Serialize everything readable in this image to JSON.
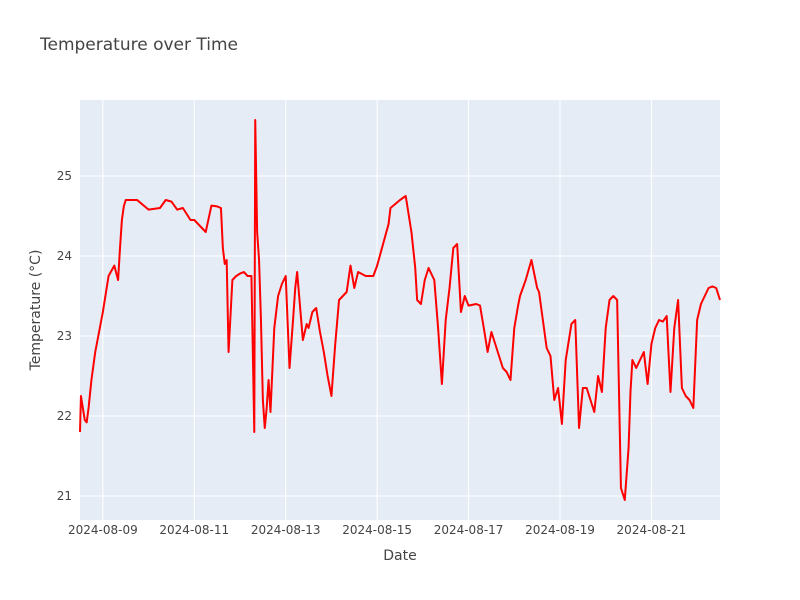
{
  "chart_data": {
    "type": "line",
    "title": "Temperature over Time",
    "xlabel": "Date",
    "ylabel": "Temperature (°C)",
    "xlim": [
      "2024-08-08T12:00",
      "2024-08-22T12:00"
    ],
    "ylim": [
      20.7,
      25.95
    ],
    "x_ticks": [
      "2024-08-09",
      "2024-08-11",
      "2024-08-13",
      "2024-08-15",
      "2024-08-17",
      "2024-08-19",
      "2024-08-21"
    ],
    "y_ticks": [
      21,
      22,
      23,
      24,
      25
    ],
    "grid": true,
    "legend": "none",
    "colors": {
      "line": "#ff0000",
      "plot_bg": "#e5ecf6",
      "grid": "#ffffff"
    },
    "series": [
      {
        "x": [
          "2024-08-08T12:00",
          "2024-08-08T12:30",
          "2024-08-08T13:30",
          "2024-08-08T14:30",
          "2024-08-08T15:30",
          "2024-08-08T16:30",
          "2024-08-08T18:00",
          "2024-08-08T20:00",
          "2024-08-08T22:00",
          "2024-08-09T00:00",
          "2024-08-09T03:00",
          "2024-08-09T06:00",
          "2024-08-09T08:00",
          "2024-08-09T09:00",
          "2024-08-09T10:00",
          "2024-08-09T11:00",
          "2024-08-09T12:00",
          "2024-08-09T13:00",
          "2024-08-09T16:00",
          "2024-08-09T18:00",
          "2024-08-10T00:00",
          "2024-08-10T06:00",
          "2024-08-10T09:00",
          "2024-08-10T12:00",
          "2024-08-10T15:00",
          "2024-08-10T18:00",
          "2024-08-10T22:00",
          "2024-08-11T00:00",
          "2024-08-11T06:00",
          "2024-08-11T09:00",
          "2024-08-11T12:00",
          "2024-08-11T14:00",
          "2024-08-11T15:00",
          "2024-08-11T16:00",
          "2024-08-11T17:00",
          "2024-08-11T18:00",
          "2024-08-11T20:00",
          "2024-08-11T22:00",
          "2024-08-12T00:00",
          "2024-08-12T02:00",
          "2024-08-12T04:00",
          "2024-08-12T06:00",
          "2024-08-12T07:30",
          "2024-08-12T08:00",
          "2024-08-12T09:00",
          "2024-08-12T10:00",
          "2024-08-12T11:00",
          "2024-08-12T12:00",
          "2024-08-12T13:00",
          "2024-08-12T14:00",
          "2024-08-12T15:00",
          "2024-08-12T16:00",
          "2024-08-12T18:00",
          "2024-08-12T20:00",
          "2024-08-12T22:00",
          "2024-08-13T00:00",
          "2024-08-13T02:00",
          "2024-08-13T04:00",
          "2024-08-13T05:00",
          "2024-08-13T06:00",
          "2024-08-13T09:00",
          "2024-08-13T11:00",
          "2024-08-13T12:00",
          "2024-08-13T14:00",
          "2024-08-13T16:00",
          "2024-08-13T18:00",
          "2024-08-13T20:00",
          "2024-08-13T22:00",
          "2024-08-14T00:00",
          "2024-08-14T02:00",
          "2024-08-14T04:00",
          "2024-08-14T06:00",
          "2024-08-14T08:00",
          "2024-08-14T10:00",
          "2024-08-14T12:00",
          "2024-08-14T14:00",
          "2024-08-14T18:00",
          "2024-08-14T20:00",
          "2024-08-14T22:00",
          "2024-08-15T00:00",
          "2024-08-15T06:00",
          "2024-08-15T07:00",
          "2024-08-15T12:00",
          "2024-08-15T15:00",
          "2024-08-15T18:00",
          "2024-08-15T20:00",
          "2024-08-15T21:00",
          "2024-08-15T23:00",
          "2024-08-16T01:00",
          "2024-08-16T03:00",
          "2024-08-16T06:00",
          "2024-08-16T08:00",
          "2024-08-16T10:00",
          "2024-08-16T12:00",
          "2024-08-16T14:00",
          "2024-08-16T16:00",
          "2024-08-16T18:00",
          "2024-08-16T20:00",
          "2024-08-16T22:00",
          "2024-08-17T00:00",
          "2024-08-17T04:00",
          "2024-08-17T06:00",
          "2024-08-17T08:00",
          "2024-08-17T10:00",
          "2024-08-17T12:00",
          "2024-08-17T14:00",
          "2024-08-17T16:00",
          "2024-08-17T18:00",
          "2024-08-17T20:00",
          "2024-08-17T22:00",
          "2024-08-18T00:00",
          "2024-08-18T02:00",
          "2024-08-18T03:00",
          "2024-08-18T06:00",
          "2024-08-18T09:00",
          "2024-08-18T12:00",
          "2024-08-18T13:00",
          "2024-08-18T15:00",
          "2024-08-18T17:00",
          "2024-08-18T19:00",
          "2024-08-18T21:00",
          "2024-08-18T23:00",
          "2024-08-19T01:00",
          "2024-08-19T03:00",
          "2024-08-19T05:00",
          "2024-08-19T06:00",
          "2024-08-19T08:00",
          "2024-08-19T10:00",
          "2024-08-19T12:00",
          "2024-08-19T14:00",
          "2024-08-19T16:00",
          "2024-08-19T18:00",
          "2024-08-19T20:00",
          "2024-08-19T22:00",
          "2024-08-20T00:00",
          "2024-08-20T02:00",
          "2024-08-20T04:00",
          "2024-08-20T06:00",
          "2024-08-20T08:00",
          "2024-08-20T10:00",
          "2024-08-20T12:00",
          "2024-08-20T13:00",
          "2024-08-20T14:00",
          "2024-08-20T16:00",
          "2024-08-20T18:00",
          "2024-08-20T20:00",
          "2024-08-20T22:00",
          "2024-08-21T00:00",
          "2024-08-21T02:00",
          "2024-08-21T04:00",
          "2024-08-21T06:00",
          "2024-08-21T08:00",
          "2024-08-21T10:00",
          "2024-08-21T12:00",
          "2024-08-21T14:00",
          "2024-08-21T16:00",
          "2024-08-21T18:00",
          "2024-08-21T20:00",
          "2024-08-21T22:00",
          "2024-08-22T00:00",
          "2024-08-22T02:00",
          "2024-08-22T04:00",
          "2024-08-22T06:00",
          "2024-08-22T08:00",
          "2024-08-22T10:00",
          "2024-08-22T12:00"
        ],
        "values": [
          21.8,
          22.25,
          22.1,
          21.95,
          21.92,
          22.1,
          22.45,
          22.8,
          23.05,
          23.3,
          23.75,
          23.88,
          23.7,
          24.1,
          24.45,
          24.62,
          24.7,
          24.7,
          24.7,
          24.7,
          24.58,
          24.6,
          24.7,
          24.68,
          24.58,
          24.6,
          24.45,
          24.45,
          24.3,
          24.63,
          24.62,
          24.6,
          24.1,
          23.9,
          23.95,
          22.8,
          23.7,
          23.75,
          23.78,
          23.8,
          23.75,
          23.75,
          21.8,
          25.7,
          24.3,
          23.95,
          23.2,
          22.2,
          21.85,
          22.1,
          22.45,
          22.05,
          23.1,
          23.5,
          23.65,
          23.75,
          22.6,
          23.25,
          23.6,
          23.8,
          22.95,
          23.15,
          23.1,
          23.3,
          23.35,
          23.05,
          22.8,
          22.5,
          22.25,
          22.9,
          23.45,
          23.5,
          23.55,
          23.88,
          23.6,
          23.8,
          23.75,
          23.75,
          23.75,
          23.88,
          24.4,
          24.6,
          24.7,
          24.75,
          24.3,
          23.85,
          23.45,
          23.4,
          23.7,
          23.85,
          23.7,
          23.1,
          22.4,
          23.2,
          23.6,
          24.1,
          24.15,
          23.3,
          23.5,
          23.38,
          23.4,
          23.38,
          23.1,
          22.8,
          23.05,
          22.9,
          22.75,
          22.6,
          22.55,
          22.45,
          23.1,
          23.38,
          23.5,
          23.7,
          23.95,
          23.6,
          23.55,
          23.2,
          22.85,
          22.75,
          22.2,
          22.35,
          21.9,
          22.7,
          23.0,
          23.15,
          23.2,
          21.85,
          22.35,
          22.35,
          22.2,
          22.05,
          22.5,
          22.3,
          23.1,
          23.45,
          23.5,
          23.45,
          21.1,
          20.95,
          21.6,
          22.3,
          22.7,
          22.6,
          22.7,
          22.8,
          22.4,
          22.9,
          23.1,
          23.2,
          23.18,
          23.25,
          22.3,
          23.1,
          23.45,
          22.35,
          22.25,
          22.2,
          22.1,
          23.2,
          23.4,
          23.5,
          23.6,
          23.62,
          23.6,
          23.45
        ]
      }
    ]
  }
}
